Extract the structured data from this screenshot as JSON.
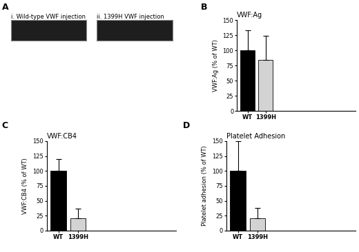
{
  "images": {
    "panel_label": "A",
    "panels": [
      {
        "label": "i. Wild-type VWF injection"
      },
      {
        "label": "ii. 1399H VWF injection"
      }
    ]
  },
  "chart_data": [
    {
      "type": "bar",
      "panel_label": "B",
      "title": "VWF:Ag",
      "y_label": "VWF:Ag (% of WT)",
      "categories": [
        "WT",
        "1399H"
      ],
      "values": [
        100,
        84
      ],
      "errors": [
        33,
        40
      ],
      "colors": [
        "#000000",
        "#d3d3d3"
      ],
      "ylim": [
        0,
        150
      ],
      "yticks": [
        0,
        25,
        50,
        75,
        100,
        125,
        150
      ]
    },
    {
      "type": "bar",
      "panel_label": "C",
      "title": "VWF:CB4",
      "y_label": "VWF:CB4 (% of WT)",
      "categories": [
        "WT",
        "1399H"
      ],
      "values": [
        100,
        21
      ],
      "errors": [
        20,
        16
      ],
      "colors": [
        "#000000",
        "#d3d3d3"
      ],
      "ylim": [
        0,
        150
      ],
      "yticks": [
        0,
        25,
        50,
        75,
        100,
        125,
        150
      ]
    },
    {
      "type": "bar",
      "panel_label": "D",
      "title": "Platelet Adhesion",
      "y_label": "Platelet adhesion (% of WT)",
      "categories": [
        "WT",
        "1399H"
      ],
      "values": [
        100,
        21
      ],
      "errors": [
        50,
        17
      ],
      "colors": [
        "#000000",
        "#d3d3d3"
      ],
      "ylim": [
        0,
        150
      ],
      "yticks": [
        0,
        25,
        50,
        75,
        100,
        125,
        150
      ]
    }
  ]
}
